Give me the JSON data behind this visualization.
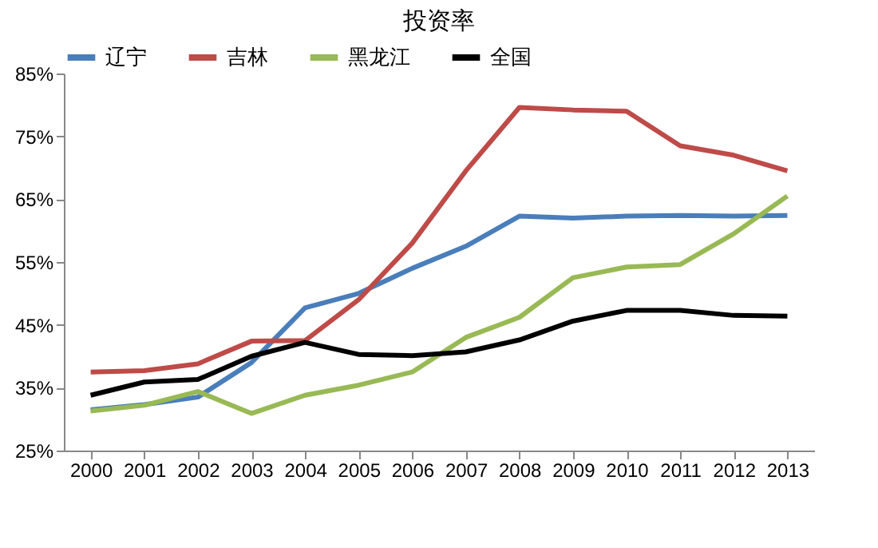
{
  "chart_data": {
    "type": "line",
    "title": "投资率",
    "categories": [
      "2000",
      "2001",
      "2002",
      "2003",
      "2004",
      "2005",
      "2006",
      "2007",
      "2008",
      "2009",
      "2010",
      "2011",
      "2012",
      "2013"
    ],
    "series": [
      {
        "name": "辽宁",
        "color": "#4a7ebb",
        "values": [
          31.5,
          32.3,
          33.5,
          39,
          47.7,
          50,
          54,
          57.5,
          62.3,
          62,
          62.3,
          62.4,
          62.3,
          62.4
        ]
      },
      {
        "name": "吉林",
        "color": "#be4b48",
        "values": [
          37.5,
          37.7,
          38.8,
          42.4,
          42.5,
          49,
          58,
          69.5,
          79.6,
          79.2,
          79,
          73.5,
          72,
          69.5
        ]
      },
      {
        "name": "黑龙江",
        "color": "#98b954",
        "values": [
          31.3,
          32.2,
          34.4,
          30.9,
          33.8,
          35.4,
          37.5,
          43,
          46.2,
          52.5,
          54.2,
          54.6,
          59.5,
          65.5
        ]
      },
      {
        "name": "全国",
        "color": "#000000",
        "values": [
          33.8,
          35.9,
          36.3,
          40,
          42.2,
          40.3,
          40.1,
          40.7,
          42.6,
          45.6,
          47.3,
          47.3,
          46.5,
          46.4
        ]
      }
    ],
    "ylim": [
      25,
      85
    ],
    "yticks": [
      {
        "value": 25,
        "label": "25%"
      },
      {
        "value": 35,
        "label": "35%"
      },
      {
        "value": 45,
        "label": "45%"
      },
      {
        "value": 55,
        "label": "55%"
      },
      {
        "value": 65,
        "label": "65%"
      },
      {
        "value": 75,
        "label": "75%"
      },
      {
        "value": 85,
        "label": "85%"
      }
    ],
    "grid": false,
    "legend": "top",
    "marker": "none",
    "line_style": "solid"
  }
}
